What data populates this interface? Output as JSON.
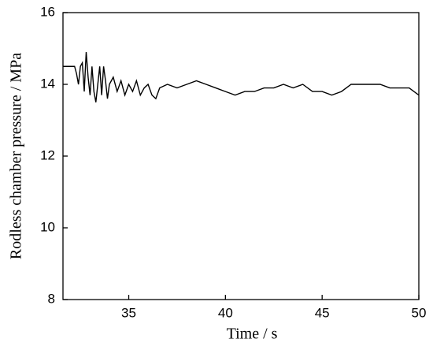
{
  "chart_data": {
    "type": "line",
    "x_label": "Time  / s",
    "y_label": "Rodless chamber pressure  / MPa",
    "xlim": [
      31.6,
      50
    ],
    "xticks": [
      35,
      40,
      45,
      50
    ],
    "ylim": [
      8,
      16
    ],
    "yticks": [
      8,
      10,
      12,
      14,
      16
    ],
    "series": [
      {
        "color": "#000000",
        "x": [
          31.6,
          32.0,
          32.2,
          32.3,
          32.4,
          32.5,
          32.6,
          32.7,
          32.8,
          32.9,
          33.0,
          33.1,
          33.2,
          33.3,
          33.4,
          33.5,
          33.6,
          33.7,
          33.8,
          33.9,
          34.0,
          34.2,
          34.4,
          34.6,
          34.8,
          35.0,
          35.2,
          35.4,
          35.6,
          35.8,
          36.0,
          36.2,
          36.4,
          36.6,
          37.0,
          37.5,
          38.0,
          38.5,
          39.0,
          39.5,
          40.0,
          40.5,
          41.0,
          41.5,
          42.0,
          42.5,
          43.0,
          43.5,
          44.0,
          44.5,
          45.0,
          45.5,
          46.0,
          46.5,
          47.0,
          48.0,
          48.5,
          49.0,
          49.5,
          50.0
        ],
        "values": [
          14.5,
          14.5,
          14.5,
          14.3,
          14.0,
          14.5,
          14.6,
          13.8,
          14.9,
          14.2,
          13.7,
          14.5,
          13.8,
          13.5,
          14.0,
          14.5,
          13.7,
          14.5,
          14.1,
          13.6,
          14.0,
          14.2,
          13.8,
          14.1,
          13.7,
          14.0,
          13.8,
          14.1,
          13.7,
          13.9,
          14.0,
          13.7,
          13.6,
          13.9,
          14.0,
          13.9,
          14.0,
          14.1,
          14.0,
          13.9,
          13.8,
          13.7,
          13.8,
          13.8,
          13.9,
          13.9,
          14.0,
          13.9,
          14.0,
          13.8,
          13.8,
          13.7,
          13.8,
          14.0,
          14.0,
          14.0,
          13.9,
          13.9,
          13.9,
          13.7
        ]
      }
    ]
  }
}
